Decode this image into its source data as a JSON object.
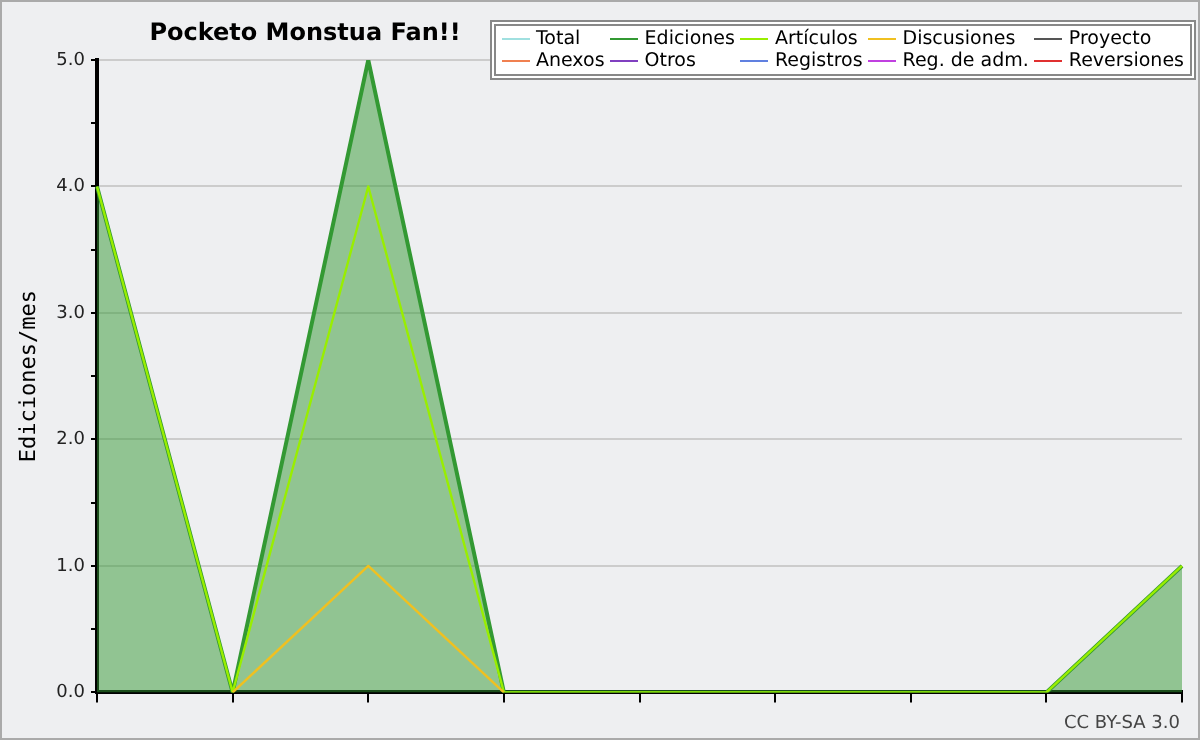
{
  "chart_data": {
    "type": "line",
    "title": "Pocketo Monstua Fan!!",
    "ylabel": "Ediciones/mes",
    "categories": [
      null,
      null,
      null,
      null,
      null,
      null,
      null,
      null,
      null
    ],
    "series": [
      {
        "name": "Total",
        "color": "#a0e0e0",
        "values": [
          null,
          null,
          null,
          null,
          null,
          null,
          null,
          null,
          null
        ]
      },
      {
        "name": "Ediciones",
        "type": "area",
        "color": "#339933",
        "values": [
          4,
          0,
          5,
          0,
          0,
          0,
          0,
          0,
          1
        ]
      },
      {
        "name": "Artículos",
        "color": "#99ee00",
        "values": [
          4,
          0,
          4,
          0,
          0,
          0,
          0,
          0,
          1
        ]
      },
      {
        "name": "Discusiones",
        "color": "#f0c020",
        "values": [
          null,
          0,
          1,
          0,
          null,
          null,
          null,
          null,
          null
        ]
      },
      {
        "name": "Proyecto",
        "color": "#555555",
        "values": [
          null,
          null,
          null,
          null,
          null,
          null,
          null,
          null,
          null
        ]
      },
      {
        "name": "Anexos",
        "color": "#f08050",
        "values": [
          null,
          null,
          null,
          null,
          null,
          null,
          null,
          null,
          null
        ]
      },
      {
        "name": "Otros",
        "color": "#8040c0",
        "values": [
          null,
          null,
          null,
          null,
          null,
          null,
          null,
          null,
          null
        ]
      },
      {
        "name": "Registros",
        "color": "#6080e0",
        "values": [
          null,
          null,
          null,
          null,
          null,
          null,
          null,
          null,
          null
        ]
      },
      {
        "name": "Reg. de adm.",
        "color": "#c040e0",
        "values": [
          null,
          null,
          null,
          null,
          null,
          null,
          null,
          null,
          null
        ]
      },
      {
        "name": "Reversiones",
        "color": "#e03030",
        "values": [
          null,
          null,
          null,
          null,
          null,
          null,
          null,
          null,
          null
        ]
      }
    ],
    "ylim": [
      0,
      5
    ],
    "yticks": [
      {
        "value": 0,
        "label": "0.0"
      },
      {
        "value": 0.5,
        "label": null
      },
      {
        "value": 1,
        "label": "1.0"
      },
      {
        "value": 1.5,
        "label": null
      },
      {
        "value": 2,
        "label": "2.0"
      },
      {
        "value": 2.5,
        "label": null
      },
      {
        "value": 3,
        "label": "3.0"
      },
      {
        "value": 3.5,
        "label": null
      },
      {
        "value": 4,
        "label": "4.0"
      },
      {
        "value": 4.5,
        "label": null
      },
      {
        "value": 5,
        "label": "5.0"
      }
    ],
    "grid": "y",
    "legend": "top right",
    "marker": "none",
    "line_style": "solid",
    "annotations": [
      "CC BY-SA 3.0"
    ]
  }
}
